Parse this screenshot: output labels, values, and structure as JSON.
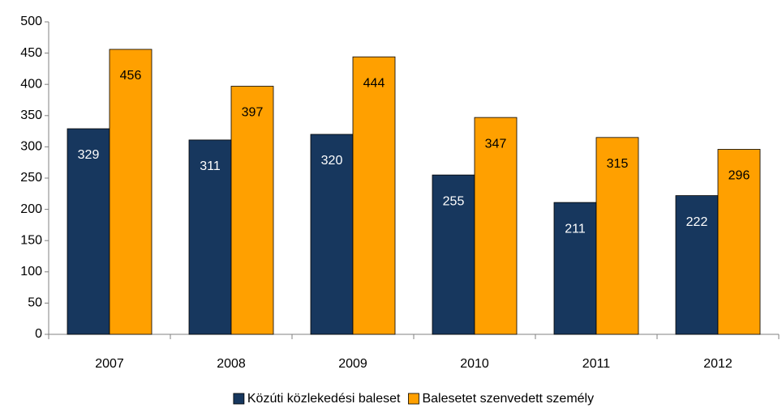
{
  "chart_data": {
    "type": "bar",
    "categories": [
      "2007",
      "2008",
      "2009",
      "2010",
      "2011",
      "2012"
    ],
    "series": [
      {
        "name": "Közúti közlekedési baleset",
        "color": "#17375e",
        "label_color": "#ffffff",
        "values": [
          329,
          311,
          320,
          255,
          211,
          222
        ]
      },
      {
        "name": "Balesetet szenvedett személy",
        "color": "#ffa000",
        "label_color": "#000000",
        "values": [
          456,
          397,
          444,
          347,
          315,
          296
        ]
      }
    ],
    "ylim": [
      0,
      500
    ],
    "yticks": [
      0,
      50,
      100,
      150,
      200,
      250,
      300,
      350,
      400,
      450,
      500
    ],
    "grid": false,
    "legend": "bottom"
  }
}
